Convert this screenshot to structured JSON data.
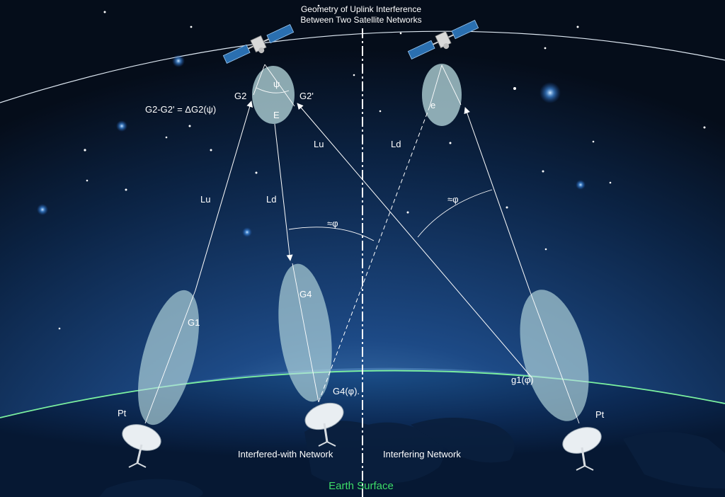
{
  "title_line1": "Geometry of Uplink Interference",
  "title_line2": "Between Two Satellite Networks",
  "formula": "G2-G2' = ΔG2(ψ)",
  "labels": {
    "g2": "G2",
    "g2p": "G2'",
    "psi": "ψ",
    "e_upper": "E",
    "e_lower": "e",
    "lu_left": "Lu",
    "ld_left": "Ld",
    "lu_center": "Lu",
    "ld_right": "Ld",
    "phi_left": "≈φ",
    "phi_right": "≈φ",
    "g1": "G1",
    "g4": "G4",
    "g4phi": "G4(φ).",
    "g1phi": "g1(φ)",
    "pt_left": "Pt",
    "pt_right": "Pt"
  },
  "network_left": "Interfered-with Network",
  "network_right": "Interfering Network",
  "earth_surface": "Earth Surface",
  "colors": {
    "sky_top": "#061020",
    "sky_bottom": "#1d4a86",
    "beam": "#b9dce0",
    "earth_rim": "#7cf2a0",
    "earth_label": "#3ddc6a"
  }
}
